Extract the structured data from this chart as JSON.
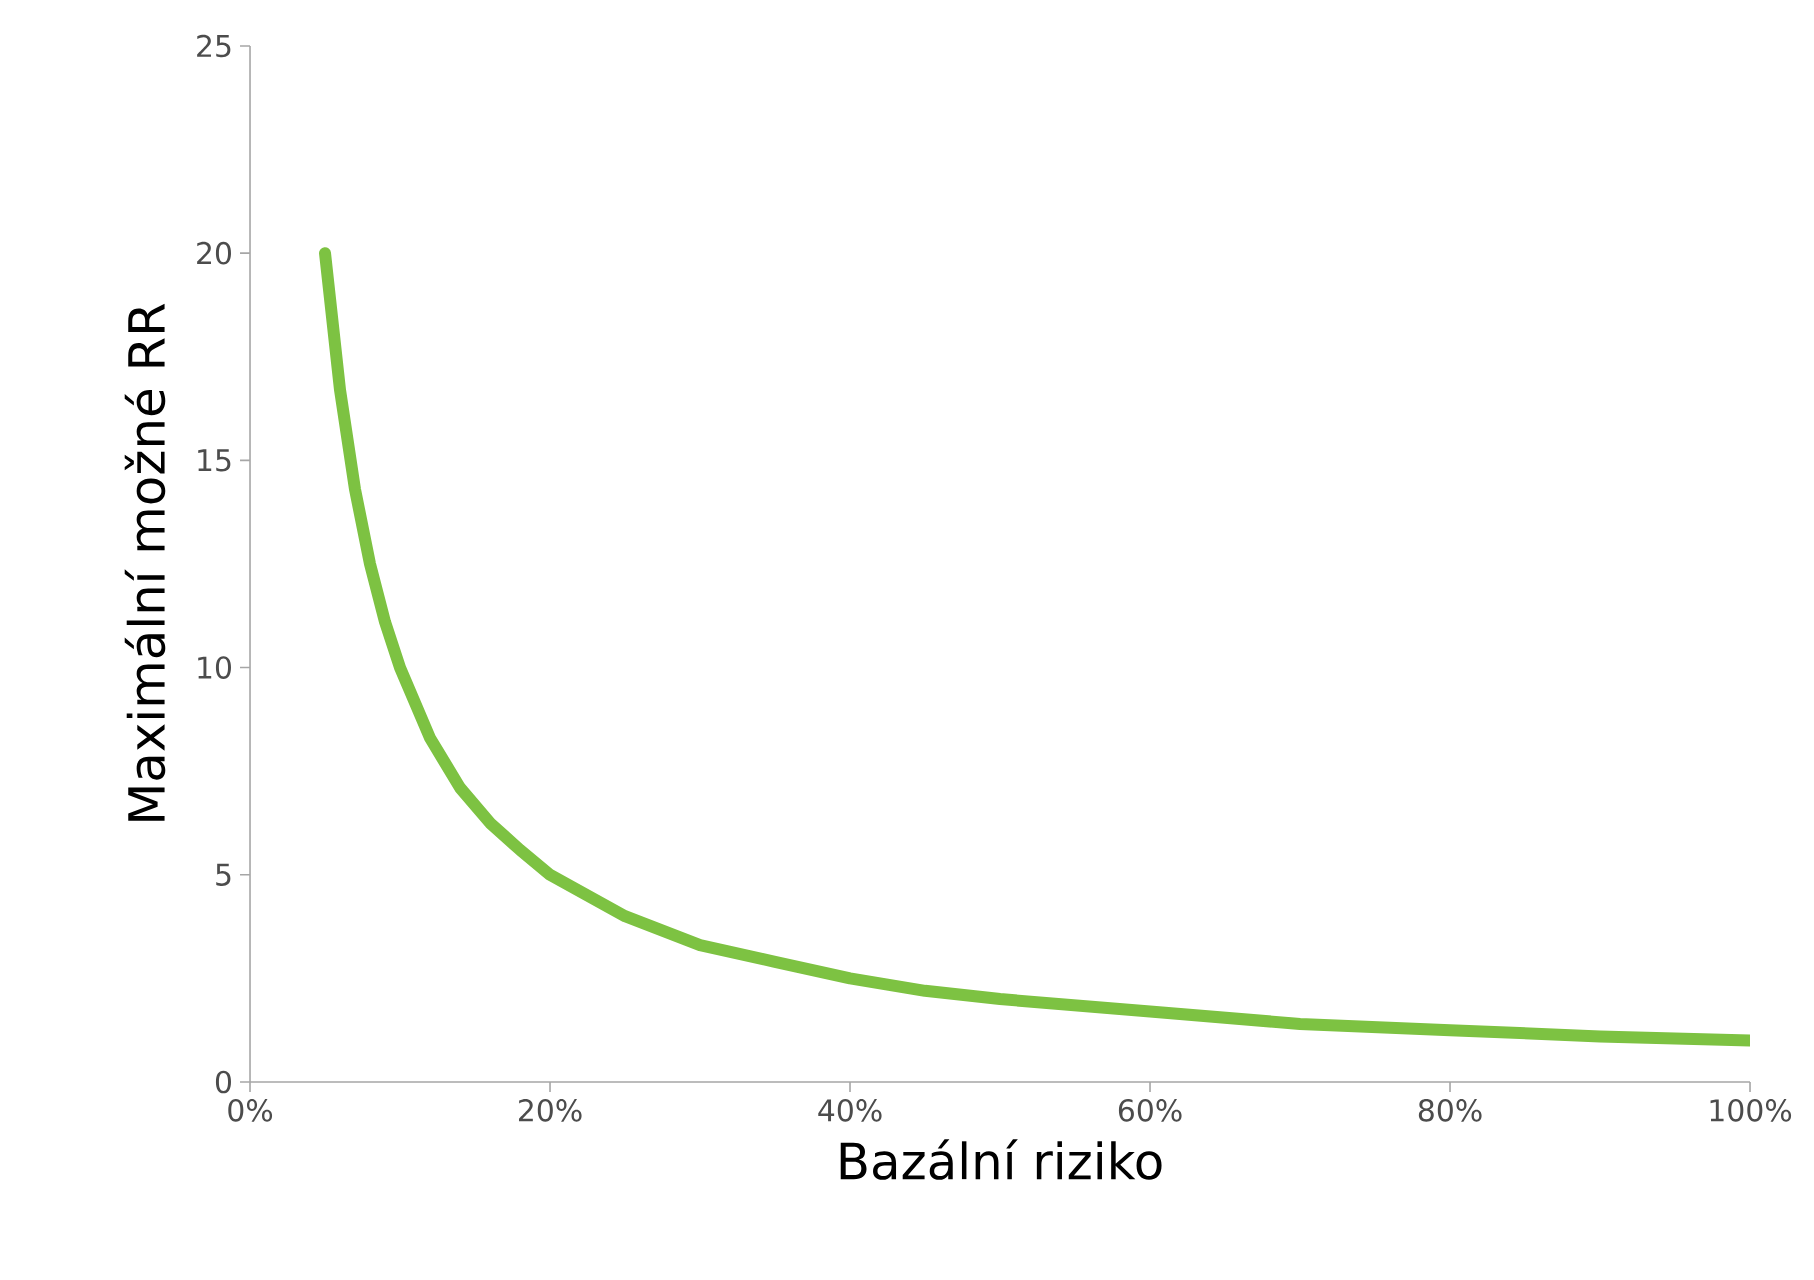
{
  "chart_data": {
    "type": "line",
    "xlabel": "Bazální riziko",
    "ylabel": "Maximální možné RR",
    "x": [
      5,
      6,
      7,
      8,
      9,
      10,
      12,
      14,
      16,
      18,
      20,
      25,
      30,
      35,
      40,
      45,
      50,
      60,
      70,
      80,
      90,
      100
    ],
    "series": [
      {
        "color": "#7dc242",
        "values": [
          20,
          16.7,
          14.3,
          12.5,
          11.1,
          10,
          8.3,
          7.1,
          6.25,
          5.6,
          5,
          4,
          3.3,
          2.9,
          2.5,
          2.2,
          2,
          1.7,
          1.4,
          1.25,
          1.1,
          1
        ]
      }
    ],
    "line_style": "solid",
    "xlim": [
      0,
      100
    ],
    "ylim": [
      0,
      25
    ],
    "xticks": [
      {
        "value": 0,
        "label": "0%"
      },
      {
        "value": 20,
        "label": "20%"
      },
      {
        "value": 40,
        "label": "40%"
      },
      {
        "value": 60,
        "label": "60%"
      },
      {
        "value": 80,
        "label": "80%"
      },
      {
        "value": 100,
        "label": "100%"
      }
    ],
    "yticks": [
      0,
      5,
      10,
      15,
      20,
      25
    ]
  }
}
